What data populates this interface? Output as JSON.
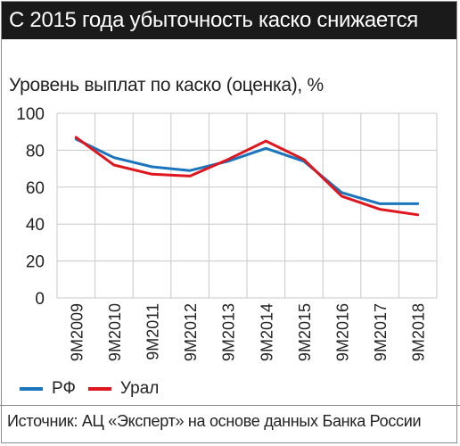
{
  "header": {
    "title": "С 2015 года убыточность каско снижается"
  },
  "legend": [
    {
      "label": "РФ",
      "color": "#1a75bc"
    },
    {
      "label": "Урал",
      "color": "#e0161f"
    }
  ],
  "source": "Источник: АЦ «Эксперт» на основе данных Банка России",
  "chart_data": {
    "type": "line",
    "title": "Уровень выплат по каско (оценка), %",
    "xlabel": "",
    "ylabel": "",
    "categories": [
      "9M2009",
      "9M2010",
      "9M2011",
      "9M2012",
      "9M2013",
      "9M2014",
      "9M2015",
      "9M2016",
      "9M2017",
      "9M2018"
    ],
    "yticks": [
      "0",
      "20",
      "40",
      "60",
      "80",
      "100"
    ],
    "ylim": [
      0,
      100
    ],
    "grid": true,
    "legend_position": "bottom-left",
    "series": [
      {
        "name": "РФ",
        "color": "#1a75bc",
        "values": [
          86,
          76,
          71,
          69,
          74,
          81,
          74,
          57,
          51,
          51
        ]
      },
      {
        "name": "Урал",
        "color": "#e0161f",
        "values": [
          87,
          72,
          67,
          66,
          75,
          85,
          75,
          55,
          48,
          45
        ]
      }
    ]
  }
}
